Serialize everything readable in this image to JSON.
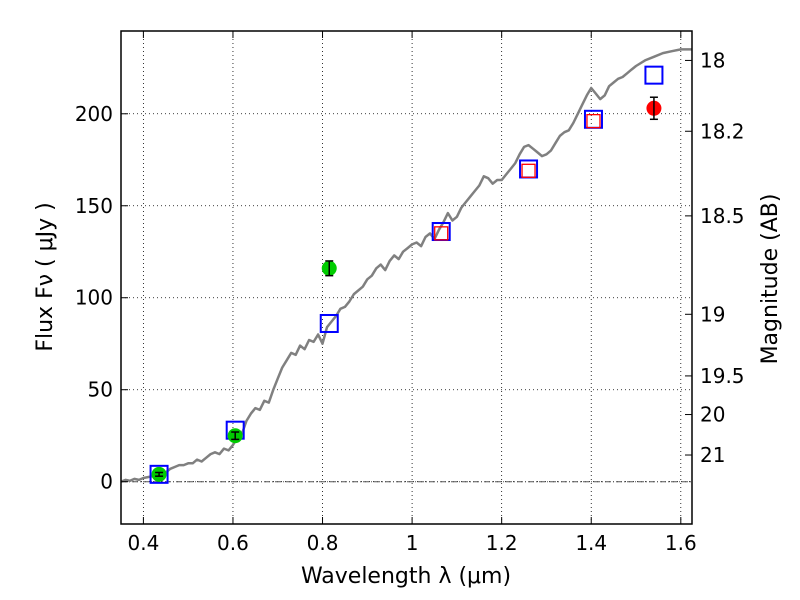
{
  "chart_data": {
    "type": "scatter",
    "xlabel": "Wavelength  λ (μm)",
    "ylabel": "Flux  Fν  ( μJy )",
    "y2label": "Magnitude (AB)",
    "xlim": [
      0.35,
      1.625
    ],
    "ylim": [
      -23,
      245
    ],
    "grid": true,
    "x_ticks": [
      {
        "value": 0.4,
        "label": "0.4"
      },
      {
        "value": 0.6,
        "label": "0.6"
      },
      {
        "value": 0.8,
        "label": "0.8"
      },
      {
        "value": 1.0,
        "label": "1"
      },
      {
        "value": 1.2,
        "label": "1.2"
      },
      {
        "value": 1.4,
        "label": "1.4"
      },
      {
        "value": 1.6,
        "label": "1.6"
      }
    ],
    "y_ticks": [
      {
        "value": 0,
        "label": "0"
      },
      {
        "value": 50,
        "label": "50"
      },
      {
        "value": 100,
        "label": "100"
      },
      {
        "value": 150,
        "label": "150"
      },
      {
        "value": 200,
        "label": "200"
      }
    ],
    "y2_ticks": [
      {
        "flux": 229,
        "label": "18"
      },
      {
        "flux": 190.5,
        "label": "18.2"
      },
      {
        "flux": 144.5,
        "label": "18.5"
      },
      {
        "flux": 91,
        "label": "19"
      },
      {
        "flux": 57.5,
        "label": "19.5"
      },
      {
        "flux": 36.5,
        "label": "20"
      },
      {
        "flux": 14.5,
        "label": "21"
      }
    ],
    "series": [
      {
        "kind": "line",
        "color": "#808080",
        "points": [
          [
            0.35,
            0
          ],
          [
            0.36,
            1
          ],
          [
            0.37,
            0.5
          ],
          [
            0.38,
            1.5
          ],
          [
            0.39,
            1
          ],
          [
            0.4,
            2
          ],
          [
            0.41,
            2.5
          ],
          [
            0.42,
            3
          ],
          [
            0.43,
            4
          ],
          [
            0.44,
            5
          ],
          [
            0.45,
            5
          ],
          [
            0.46,
            7
          ],
          [
            0.47,
            8
          ],
          [
            0.48,
            9
          ],
          [
            0.49,
            9
          ],
          [
            0.5,
            10
          ],
          [
            0.51,
            10
          ],
          [
            0.52,
            12
          ],
          [
            0.53,
            11
          ],
          [
            0.54,
            13
          ],
          [
            0.55,
            15
          ],
          [
            0.56,
            16
          ],
          [
            0.57,
            15
          ],
          [
            0.58,
            18
          ],
          [
            0.59,
            17
          ],
          [
            0.6,
            20
          ],
          [
            0.61,
            24
          ],
          [
            0.62,
            26
          ],
          [
            0.63,
            33
          ],
          [
            0.64,
            37
          ],
          [
            0.65,
            40
          ],
          [
            0.66,
            39
          ],
          [
            0.67,
            44
          ],
          [
            0.68,
            43
          ],
          [
            0.69,
            50
          ],
          [
            0.7,
            56
          ],
          [
            0.71,
            62
          ],
          [
            0.72,
            66
          ],
          [
            0.73,
            70
          ],
          [
            0.74,
            69
          ],
          [
            0.75,
            74
          ],
          [
            0.76,
            72
          ],
          [
            0.77,
            77
          ],
          [
            0.78,
            76
          ],
          [
            0.79,
            80
          ],
          [
            0.8,
            75
          ],
          [
            0.81,
            84
          ],
          [
            0.82,
            87
          ],
          [
            0.83,
            90
          ],
          [
            0.84,
            94
          ],
          [
            0.85,
            95
          ],
          [
            0.86,
            98
          ],
          [
            0.87,
            102
          ],
          [
            0.88,
            104
          ],
          [
            0.89,
            106
          ],
          [
            0.9,
            110
          ],
          [
            0.91,
            112
          ],
          [
            0.92,
            116
          ],
          [
            0.93,
            118
          ],
          [
            0.94,
            115
          ],
          [
            0.95,
            120
          ],
          [
            0.96,
            123
          ],
          [
            0.97,
            121
          ],
          [
            0.98,
            125
          ],
          [
            0.99,
            127
          ],
          [
            1.0,
            129
          ],
          [
            1.01,
            130
          ],
          [
            1.02,
            128
          ],
          [
            1.03,
            133
          ],
          [
            1.04,
            135
          ],
          [
            1.05,
            132
          ],
          [
            1.06,
            137
          ],
          [
            1.07,
            141
          ],
          [
            1.08,
            146
          ],
          [
            1.09,
            142
          ],
          [
            1.1,
            144
          ],
          [
            1.11,
            149
          ],
          [
            1.12,
            152
          ],
          [
            1.13,
            155
          ],
          [
            1.14,
            158
          ],
          [
            1.15,
            161
          ],
          [
            1.16,
            166
          ],
          [
            1.17,
            165
          ],
          [
            1.18,
            162
          ],
          [
            1.19,
            164
          ],
          [
            1.2,
            164
          ],
          [
            1.21,
            167
          ],
          [
            1.22,
            170
          ],
          [
            1.23,
            173
          ],
          [
            1.24,
            178
          ],
          [
            1.25,
            182
          ],
          [
            1.26,
            183
          ],
          [
            1.27,
            181
          ],
          [
            1.28,
            179
          ],
          [
            1.29,
            177
          ],
          [
            1.3,
            178
          ],
          [
            1.31,
            180
          ],
          [
            1.32,
            184
          ],
          [
            1.33,
            188
          ],
          [
            1.34,
            190
          ],
          [
            1.35,
            191
          ],
          [
            1.36,
            195
          ],
          [
            1.37,
            200
          ],
          [
            1.38,
            205
          ],
          [
            1.39,
            210
          ],
          [
            1.4,
            214
          ],
          [
            1.41,
            211
          ],
          [
            1.42,
            208
          ],
          [
            1.43,
            210
          ],
          [
            1.44,
            215
          ],
          [
            1.45,
            217
          ],
          [
            1.46,
            219
          ],
          [
            1.47,
            220
          ],
          [
            1.48,
            222
          ],
          [
            1.49,
            224
          ],
          [
            1.5,
            226
          ],
          [
            1.52,
            229
          ],
          [
            1.54,
            231
          ],
          [
            1.56,
            233
          ],
          [
            1.58,
            234
          ],
          [
            1.6,
            235
          ],
          [
            1.625,
            235
          ]
        ]
      },
      {
        "kind": "open-square",
        "color": "#0000ff",
        "points": [
          [
            0.435,
            4
          ],
          [
            0.605,
            28
          ],
          [
            0.815,
            86
          ],
          [
            1.065,
            136
          ],
          [
            1.26,
            170
          ],
          [
            1.405,
            197
          ],
          [
            1.54,
            221
          ]
        ]
      },
      {
        "kind": "open-square",
        "color": "#ff0000",
        "points": [
          [
            1.065,
            135
          ],
          [
            1.26,
            169
          ],
          [
            1.405,
            196
          ]
        ]
      },
      {
        "kind": "filled-circle",
        "color": "#00cc00",
        "points": [
          [
            0.435,
            4,
            1
          ],
          [
            0.605,
            25,
            2
          ],
          [
            0.815,
            116,
            4
          ]
        ]
      },
      {
        "kind": "filled-circle",
        "color": "#ff0000",
        "points": [
          [
            1.54,
            203,
            6
          ]
        ]
      }
    ]
  }
}
